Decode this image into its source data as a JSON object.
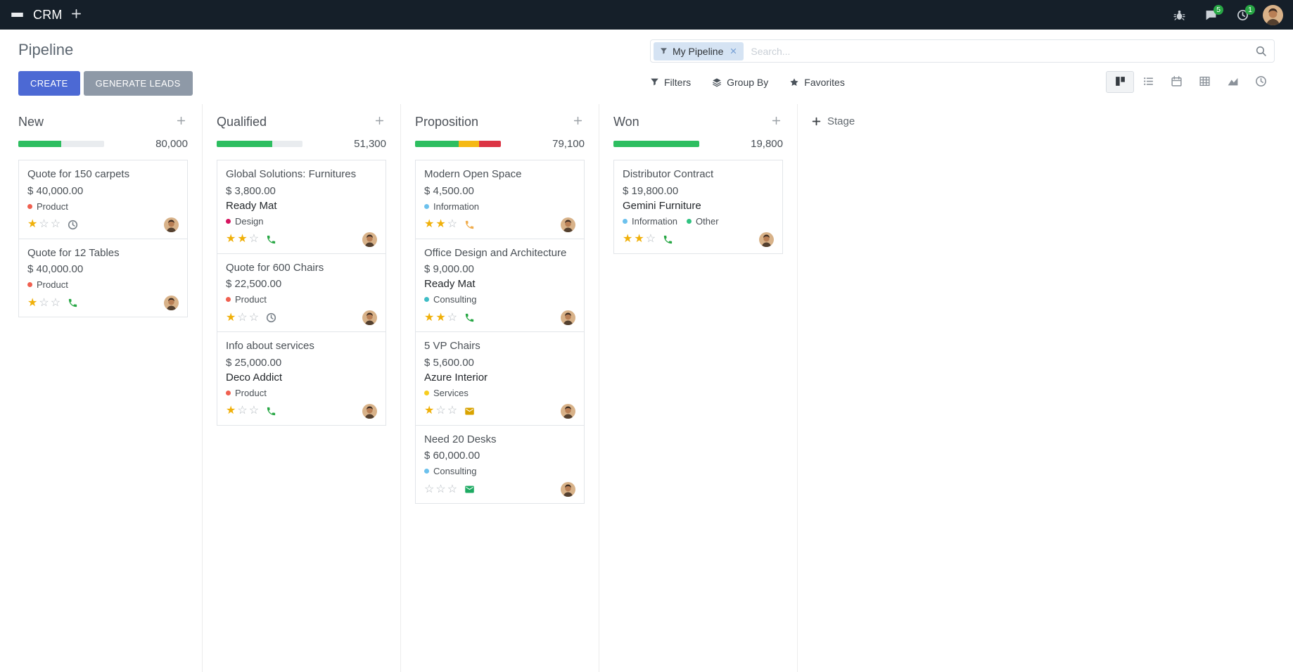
{
  "colors": {
    "navbar": "#151f29",
    "primary": "#4c69d4",
    "secondary": "#8e99a7",
    "success": "#28a745"
  },
  "topbar": {
    "app_name": "CRM",
    "messages_badge": "5",
    "activities_badge": "1"
  },
  "control_panel": {
    "title": "Pipeline",
    "create_label": "CREATE",
    "generate_leads_label": "GENERATE LEADS",
    "filters_label": "Filters",
    "group_by_label": "Group By",
    "favorites_label": "Favorites",
    "search": {
      "facet_label": "My Pipeline",
      "placeholder": "Search..."
    },
    "view_switcher": [
      {
        "id": "kanban",
        "active": true
      },
      {
        "id": "list",
        "active": false
      },
      {
        "id": "calendar",
        "active": false
      },
      {
        "id": "pivot",
        "active": false
      },
      {
        "id": "graph",
        "active": false
      },
      {
        "id": "activity",
        "active": false
      }
    ]
  },
  "board": {
    "add_stage_label": "Stage",
    "columns": [
      {
        "name": "New",
        "total": "80,000",
        "progress": [
          {
            "color": "#2dbe60",
            "pct": 50
          }
        ],
        "cards": [
          {
            "title": "Quote for 150 carpets",
            "amount": "$ 40,000.00",
            "partner": "",
            "tags": [
              {
                "label": "Product",
                "color": "#f06050"
              }
            ],
            "stars": 1,
            "activity": {
              "type": "clock",
              "color": "#7a828a"
            }
          },
          {
            "title": "Quote for 12 Tables",
            "amount": "$ 40,000.00",
            "partner": "",
            "tags": [
              {
                "label": "Product",
                "color": "#f06050"
              }
            ],
            "stars": 1,
            "activity": {
              "type": "phone",
              "color": "#28a745"
            }
          }
        ]
      },
      {
        "name": "Qualified",
        "total": "51,300",
        "progress": [
          {
            "color": "#2dbe60",
            "pct": 65
          }
        ],
        "cards": [
          {
            "title": "Global Solutions: Furnitures",
            "amount": "$ 3,800.00",
            "partner": "Ready Mat",
            "tags": [
              {
                "label": "Design",
                "color": "#d6145f"
              }
            ],
            "stars": 2,
            "activity": {
              "type": "phone",
              "color": "#28a745"
            }
          },
          {
            "title": "Quote for 600 Chairs",
            "amount": "$ 22,500.00",
            "partner": "",
            "tags": [
              {
                "label": "Product",
                "color": "#f06050"
              }
            ],
            "stars": 1,
            "activity": {
              "type": "clock",
              "color": "#7a828a"
            }
          },
          {
            "title": "Info about services",
            "amount": "$ 25,000.00",
            "partner": "Deco Addict",
            "tags": [
              {
                "label": "Product",
                "color": "#f06050"
              }
            ],
            "stars": 1,
            "activity": {
              "type": "phone",
              "color": "#28a745"
            }
          }
        ]
      },
      {
        "name": "Proposition",
        "total": "79,100",
        "progress": [
          {
            "color": "#2dbe60",
            "pct": 51
          },
          {
            "color": "#f5b914",
            "pct": 24
          },
          {
            "color": "#dc3545",
            "pct": 25
          }
        ],
        "cards": [
          {
            "title": "Modern Open Space",
            "amount": "$ 4,500.00",
            "partner": "",
            "tags": [
              {
                "label": "Information",
                "color": "#6cc1ed"
              }
            ],
            "stars": 2,
            "activity": {
              "type": "phone",
              "color": "#f0ad4e"
            }
          },
          {
            "title": "Office Design and Architecture",
            "amount": "$ 9,000.00",
            "partner": "Ready Mat",
            "tags": [
              {
                "label": "Consulting",
                "color": "#3fbdc6"
              }
            ],
            "stars": 2,
            "activity": {
              "type": "phone",
              "color": "#28a745"
            }
          },
          {
            "title": "5 VP Chairs",
            "amount": "$ 5,600.00",
            "partner": "Azure Interior",
            "tags": [
              {
                "label": "Services",
                "color": "#f7cd1f"
              }
            ],
            "stars": 1,
            "activity": {
              "type": "envelope",
              "color": "#d9a300"
            }
          },
          {
            "title": "Need 20 Desks",
            "amount": "$ 60,000.00",
            "partner": "",
            "tags": [
              {
                "label": "Consulting",
                "color": "#6cc1ed"
              }
            ],
            "stars": 0,
            "activity": {
              "type": "envelope",
              "color": "#1daa62"
            }
          }
        ]
      },
      {
        "name": "Won",
        "total": "19,800",
        "progress": [
          {
            "color": "#2dbe60",
            "pct": 100
          }
        ],
        "cards": [
          {
            "title": "Distributor Contract",
            "amount": "$ 19,800.00",
            "partner": "Gemini Furniture",
            "tags": [
              {
                "label": "Information",
                "color": "#6cc1ed"
              },
              {
                "label": "Other",
                "color": "#30c381"
              }
            ],
            "stars": 2,
            "activity": {
              "type": "phone",
              "color": "#28a745"
            }
          }
        ]
      }
    ]
  }
}
